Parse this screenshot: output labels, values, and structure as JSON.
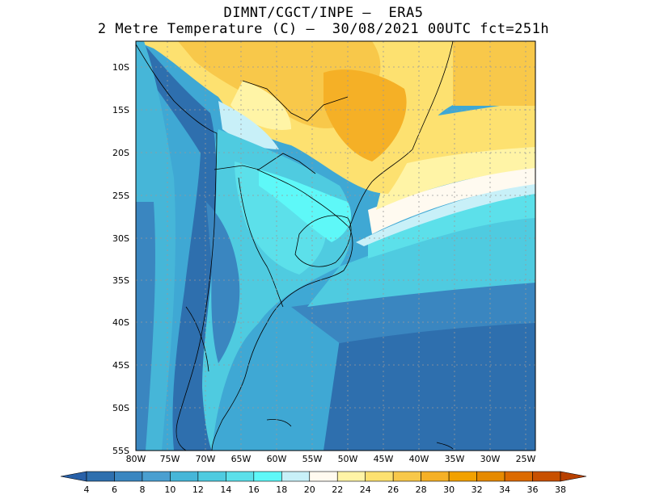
{
  "title": {
    "line1": "DIMNT/CGCT/INPE –  ERA5",
    "line2": "2 Metre Temperature (C) –  30/08/2021 00UTC fct=251h"
  },
  "map": {
    "lon_labels": [
      "80W",
      "75W",
      "70W",
      "65W",
      "60W",
      "55W",
      "50W",
      "45W",
      "40W",
      "35W",
      "30W",
      "25W"
    ],
    "lat_labels": [
      "10S",
      "15S",
      "20S",
      "25S",
      "30S",
      "35S",
      "40S",
      "45S",
      "50S",
      "55S"
    ]
  },
  "colorbar": {
    "ticks": [
      "4",
      "6",
      "8",
      "10",
      "12",
      "14",
      "16",
      "18",
      "20",
      "22",
      "24",
      "26",
      "28",
      "30",
      "32",
      "34",
      "36",
      "38"
    ],
    "colors": [
      "#2e6fae",
      "#3a86c0",
      "#4a9fd0",
      "#46b6d8",
      "#4fcbe0",
      "#5ce0ea",
      "#5ef8f8",
      "#c8f0f8",
      "#fffaf0",
      "#fff4a6",
      "#fde170",
      "#f8c84a",
      "#f5b026",
      "#f2a100",
      "#e68a00",
      "#dc6a00",
      "#c85000"
    ],
    "low_color": "#2860a8",
    "high_color": "#b84000"
  }
}
